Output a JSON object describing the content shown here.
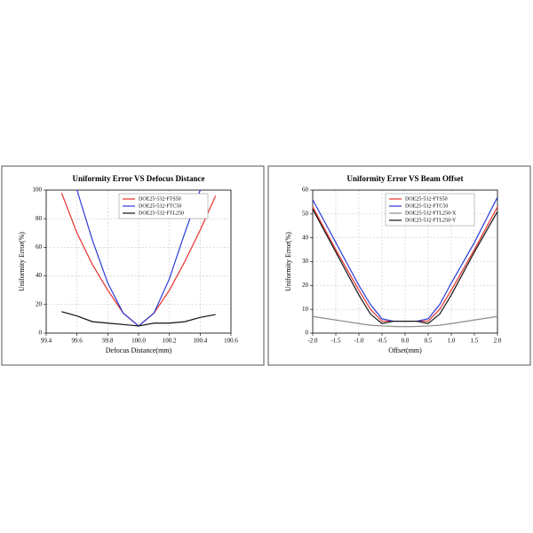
{
  "chart_data": [
    {
      "type": "line",
      "title": "Uniformity Error VS Defocus Distance",
      "x_label": "Defocus Distance(mm)",
      "y_label": "Uniformity Error(%)",
      "x": [
        99.5,
        99.6,
        99.7,
        99.8,
        99.9,
        100.0,
        100.1,
        100.2,
        100.3,
        100.4,
        100.5
      ],
      "series": [
        {
          "name": "DOE25-532-FTS50",
          "color": "#e8302a",
          "values": [
            98,
            70,
            48,
            30,
            14,
            5,
            14,
            30,
            50,
            72,
            96
          ]
        },
        {
          "name": "DOE25-532-FTC50",
          "color": "#2b3bd6",
          "values": [
            null,
            100,
            65,
            35,
            14,
            5,
            14,
            38,
            70,
            100,
            null
          ]
        },
        {
          "name": "DOE25-532-FTL250",
          "color": "#111111",
          "values": [
            15,
            12,
            8,
            7,
            6,
            5,
            7,
            7,
            8,
            11,
            13
          ]
        }
      ],
      "xlim": [
        99.4,
        100.6
      ],
      "xticks": [
        99.4,
        99.6,
        99.8,
        {
          "value": 100,
          "label": "100.0"
        },
        100.2,
        100.4,
        100.6
      ],
      "ylim": [
        0,
        100
      ],
      "yticks": [
        0,
        20,
        40,
        60,
        80,
        100
      ],
      "grid": true,
      "legend": "top"
    },
    {
      "type": "line",
      "title": "Uniformity Error VS Beam Offset",
      "x_label": "Offset(mm)",
      "y_label": "Uniformity Error(%)",
      "x": [
        -2,
        -1.5,
        -1,
        -0.75,
        -0.5,
        -0.25,
        0,
        0.25,
        0.5,
        0.75,
        1,
        1.5,
        2
      ],
      "series": [
        {
          "name": "DOE25-532-FTS50",
          "color": "#e8302a",
          "values": [
            53,
            35,
            18,
            10,
            5,
            5,
            5,
            5,
            5,
            10,
            18,
            35,
            53
          ]
        },
        {
          "name": "DOE25-532-FTC50",
          "color": "#2b3bd6",
          "values": [
            56,
            38,
            20,
            12,
            6,
            5,
            5,
            5,
            6,
            12,
            21,
            38,
            57
          ]
        },
        {
          "name": "DOE25-532-FTL250-X",
          "color": "#8c8c8c",
          "values": [
            7,
            5.5,
            4,
            3.3,
            3,
            2.8,
            2.7,
            2.8,
            3,
            3.3,
            4,
            5.5,
            7
          ]
        },
        {
          "name": "DOE25-532-FTL250-Y",
          "color": "#111111",
          "values": [
            52,
            34,
            16,
            8,
            4,
            5,
            5,
            5,
            4,
            8,
            16,
            34,
            51
          ]
        }
      ],
      "xlim": [
        -2,
        2
      ],
      "xticks": [
        {
          "value": -2,
          "label": "-2.0"
        },
        -1.5,
        {
          "value": -1,
          "label": "-1.0"
        },
        -0.5,
        {
          "value": 0,
          "label": "0.0"
        },
        0.5,
        {
          "value": 1,
          "label": "1.0"
        },
        1.5,
        {
          "value": 2,
          "label": "2.0"
        }
      ],
      "ylim": [
        0,
        60
      ],
      "yticks": [
        0,
        10,
        20,
        30,
        40,
        50,
        60
      ],
      "grid": true,
      "legend": "top"
    }
  ]
}
